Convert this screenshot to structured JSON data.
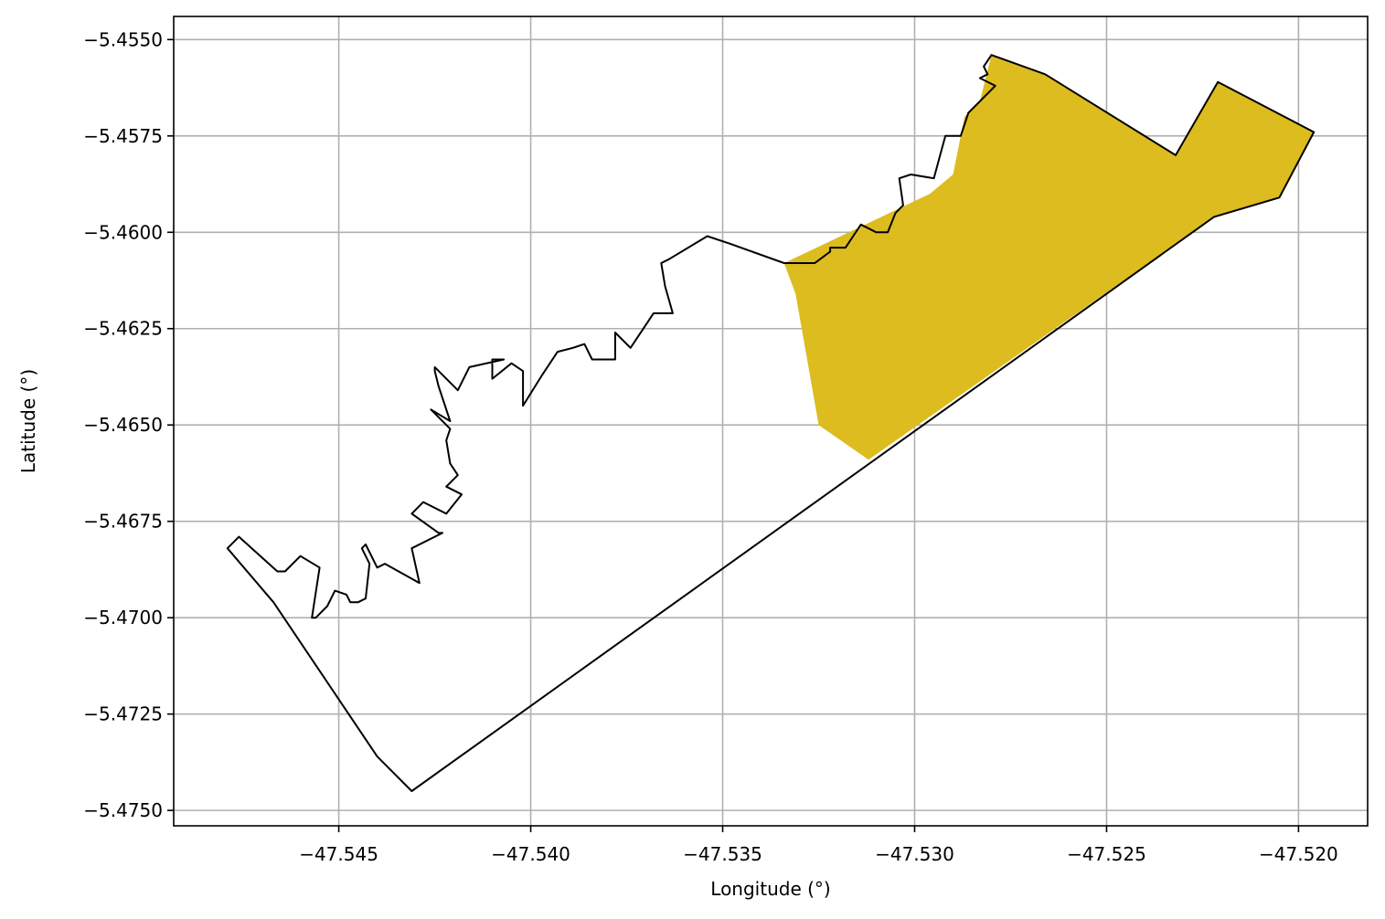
{
  "chart_data": {
    "type": "map",
    "title": "",
    "xlabel": "Longitude (°)",
    "ylabel": "Latitude (°)",
    "xlim": [
      -47.5493,
      -47.5182
    ],
    "ylim": [
      -5.4754,
      -5.4544
    ],
    "grid": true,
    "xticks": [
      -47.545,
      -47.54,
      -47.535,
      -47.53,
      -47.525,
      -47.52
    ],
    "xtick_labels": [
      "−47.545",
      "−47.540",
      "−47.535",
      "−47.530",
      "−47.525",
      "−47.520"
    ],
    "yticks": [
      -5.455,
      -5.4575,
      -5.46,
      -5.4625,
      -5.465,
      -5.4675,
      -5.47,
      -5.4725,
      -5.475
    ],
    "ytick_labels": [
      "−5.4550",
      "−5.4575",
      "−5.4600",
      "−5.4625",
      "−5.4650",
      "−5.4675",
      "−5.4700",
      "−5.4725",
      "−5.4750"
    ],
    "highlight_color": "#dcbc1f",
    "outline_color": "#000000",
    "highlight_polygon": [
      [
        -47.5334,
        -5.4608
      ],
      [
        -47.5296,
        -5.459
      ],
      [
        -47.529,
        -5.4585
      ],
      [
        -47.5287,
        -5.457
      ],
      [
        -47.5283,
        -5.4566
      ],
      [
        -47.528,
        -5.4554
      ],
      [
        -47.5266,
        -5.4559
      ],
      [
        -47.5232,
        -5.458
      ],
      [
        -47.5221,
        -5.4561
      ],
      [
        -47.5196,
        -5.4574
      ],
      [
        -47.5205,
        -5.4591
      ],
      [
        -47.5222,
        -5.4596
      ],
      [
        -47.5312,
        -5.4659
      ],
      [
        -47.5325,
        -5.465
      ],
      [
        -47.5331,
        -5.4616
      ]
    ],
    "outline_polygon": [
      [
        -47.5431,
        -5.4745
      ],
      [
        -47.5222,
        -5.4596
      ],
      [
        -47.5205,
        -5.4591
      ],
      [
        -47.5196,
        -5.4574
      ],
      [
        -47.5221,
        -5.4561
      ],
      [
        -47.5232,
        -5.458
      ],
      [
        -47.5266,
        -5.4559
      ],
      [
        -47.528,
        -5.4554
      ],
      [
        -47.5282,
        -5.4557
      ],
      [
        -47.5281,
        -5.4559
      ],
      [
        -47.5283,
        -5.456
      ],
      [
        -47.5279,
        -5.4562
      ],
      [
        -47.5286,
        -5.4569
      ],
      [
        -47.5288,
        -5.4575
      ],
      [
        -47.5292,
        -5.4575
      ],
      [
        -47.5295,
        -5.4586
      ],
      [
        -47.5301,
        -5.4585
      ],
      [
        -47.5304,
        -5.4586
      ],
      [
        -47.5303,
        -5.4593
      ],
      [
        -47.5305,
        -5.4595
      ],
      [
        -47.5307,
        -5.46
      ],
      [
        -47.531,
        -5.46
      ],
      [
        -47.5314,
        -5.4598
      ],
      [
        -47.5318,
        -5.4604
      ],
      [
        -47.5322,
        -5.4604
      ],
      [
        -47.5322,
        -5.4605
      ],
      [
        -47.5326,
        -5.4608
      ],
      [
        -47.5334,
        -5.4608
      ],
      [
        -47.5348,
        -5.4603
      ],
      [
        -47.5354,
        -5.4601
      ],
      [
        -47.5364,
        -5.4607
      ],
      [
        -47.5366,
        -5.4608
      ],
      [
        -47.5365,
        -5.4614
      ],
      [
        -47.5363,
        -5.4621
      ],
      [
        -47.5368,
        -5.4621
      ],
      [
        -47.5374,
        -5.463
      ],
      [
        -47.5378,
        -5.4626
      ],
      [
        -47.5378,
        -5.4633
      ],
      [
        -47.5384,
        -5.4633
      ],
      [
        -47.5386,
        -5.4629
      ],
      [
        -47.5389,
        -5.463
      ],
      [
        -47.5393,
        -5.4631
      ],
      [
        -47.5397,
        -5.4637
      ],
      [
        -47.5402,
        -5.4645
      ],
      [
        -47.5402,
        -5.4636
      ],
      [
        -47.5405,
        -5.4634
      ],
      [
        -47.541,
        -5.4638
      ],
      [
        -47.541,
        -5.4633
      ],
      [
        -47.5407,
        -5.4633
      ],
      [
        -47.5416,
        -5.4635
      ],
      [
        -47.5419,
        -5.4641
      ],
      [
        -47.5425,
        -5.4635
      ],
      [
        -47.5425,
        -5.4636
      ],
      [
        -47.5424,
        -5.464
      ],
      [
        -47.5421,
        -5.4649
      ],
      [
        -47.5426,
        -5.4646
      ],
      [
        -47.5421,
        -5.4651
      ],
      [
        -47.5422,
        -5.4654
      ],
      [
        -47.5421,
        -5.466
      ],
      [
        -47.5419,
        -5.4663
      ],
      [
        -47.5422,
        -5.4666
      ],
      [
        -47.5418,
        -5.4668
      ],
      [
        -47.5422,
        -5.4673
      ],
      [
        -47.5428,
        -5.467
      ],
      [
        -47.5431,
        -5.4673
      ],
      [
        -47.5424,
        -5.4678
      ],
      [
        -47.5423,
        -5.4678
      ],
      [
        -47.5431,
        -5.4682
      ],
      [
        -47.5429,
        -5.4691
      ],
      [
        -47.5438,
        -5.4686
      ],
      [
        -47.544,
        -5.4687
      ],
      [
        -47.5443,
        -5.4681
      ],
      [
        -47.5444,
        -5.4682
      ],
      [
        -47.5442,
        -5.4686
      ],
      [
        -47.5443,
        -5.4695
      ],
      [
        -47.5445,
        -5.4696
      ],
      [
        -47.5447,
        -5.4696
      ],
      [
        -47.5448,
        -5.4694
      ],
      [
        -47.5451,
        -5.4693
      ],
      [
        -47.5453,
        -5.4697
      ],
      [
        -47.5456,
        -5.47
      ],
      [
        -47.5457,
        -5.47
      ],
      [
        -47.5455,
        -5.4687
      ],
      [
        -47.546,
        -5.4684
      ],
      [
        -47.5464,
        -5.4688
      ],
      [
        -47.5466,
        -5.4688
      ],
      [
        -47.5476,
        -5.4679
      ],
      [
        -47.5479,
        -5.4682
      ],
      [
        -47.5467,
        -5.4696
      ],
      [
        -47.544,
        -5.4736
      ],
      [
        -47.5431,
        -5.4745
      ]
    ]
  }
}
